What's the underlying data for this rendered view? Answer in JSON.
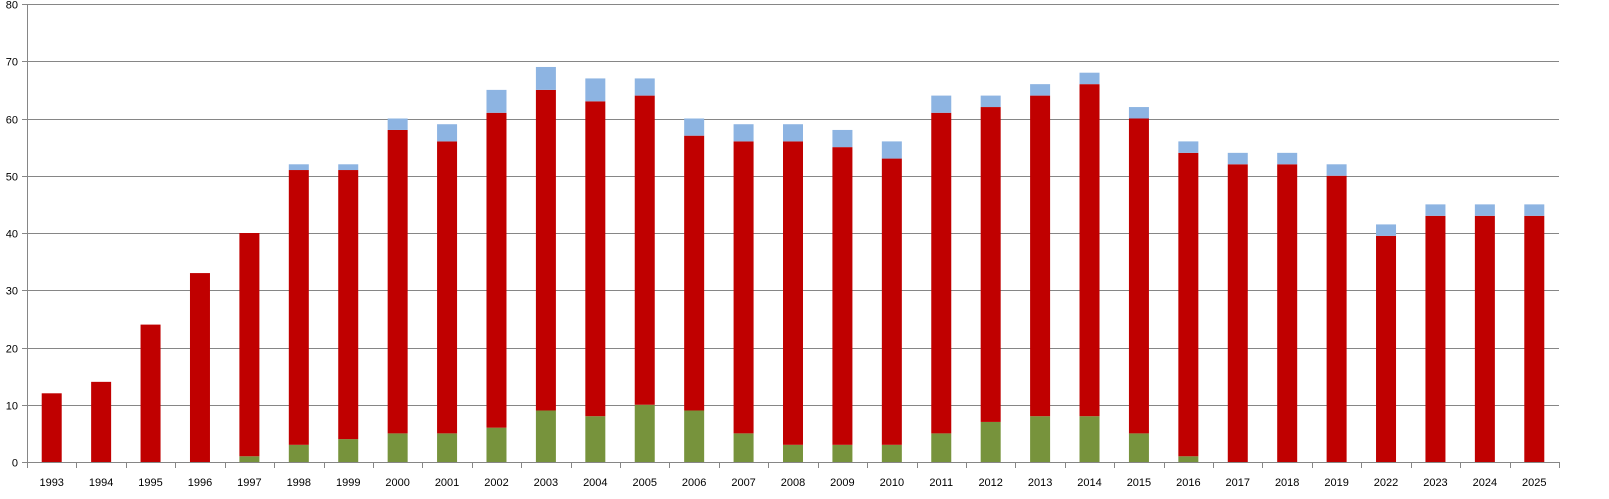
{
  "chart_data": {
    "type": "bar",
    "stacked": true,
    "title": "",
    "xlabel": "",
    "ylabel": "",
    "ylim": [
      0,
      80
    ],
    "yticks": [
      0,
      10,
      20,
      30,
      40,
      50,
      60,
      70,
      80
    ],
    "grid": true,
    "legend": "none",
    "categories": [
      "1993",
      "1994",
      "1995",
      "1996",
      "1997",
      "1998",
      "1999",
      "2000",
      "2001",
      "2002",
      "2003",
      "2004",
      "2005",
      "2006",
      "2007",
      "2008",
      "2009",
      "2010",
      "2011",
      "2012",
      "2013",
      "2014",
      "2015",
      "2016",
      "2017",
      "2018",
      "2019",
      "2022",
      "2023",
      "2024",
      "2025"
    ],
    "series": [
      {
        "color": "#77933C",
        "values": [
          0,
          0,
          0,
          0,
          1,
          3,
          4,
          5,
          5,
          6,
          9,
          8,
          10,
          9,
          5,
          3,
          3,
          3,
          5,
          7,
          8,
          8,
          5,
          1,
          0,
          0,
          0,
          0,
          0,
          0,
          0
        ]
      },
      {
        "color": "#C00000",
        "values": [
          12,
          14,
          24,
          33,
          39,
          48,
          47,
          53,
          51,
          55,
          56,
          55,
          54,
          48,
          51,
          53,
          52,
          50,
          56,
          55,
          56,
          58,
          55,
          53,
          52,
          52,
          50,
          39.5,
          43,
          43,
          43
        ]
      },
      {
        "color": "#8DB4E2",
        "values": [
          0,
          0,
          0,
          0,
          0,
          1,
          1,
          2,
          3,
          4,
          4,
          4,
          3,
          3,
          3,
          3,
          3,
          3,
          3,
          2,
          2,
          2,
          2,
          2,
          2,
          2,
          2,
          2,
          2,
          2,
          2
        ]
      }
    ]
  }
}
